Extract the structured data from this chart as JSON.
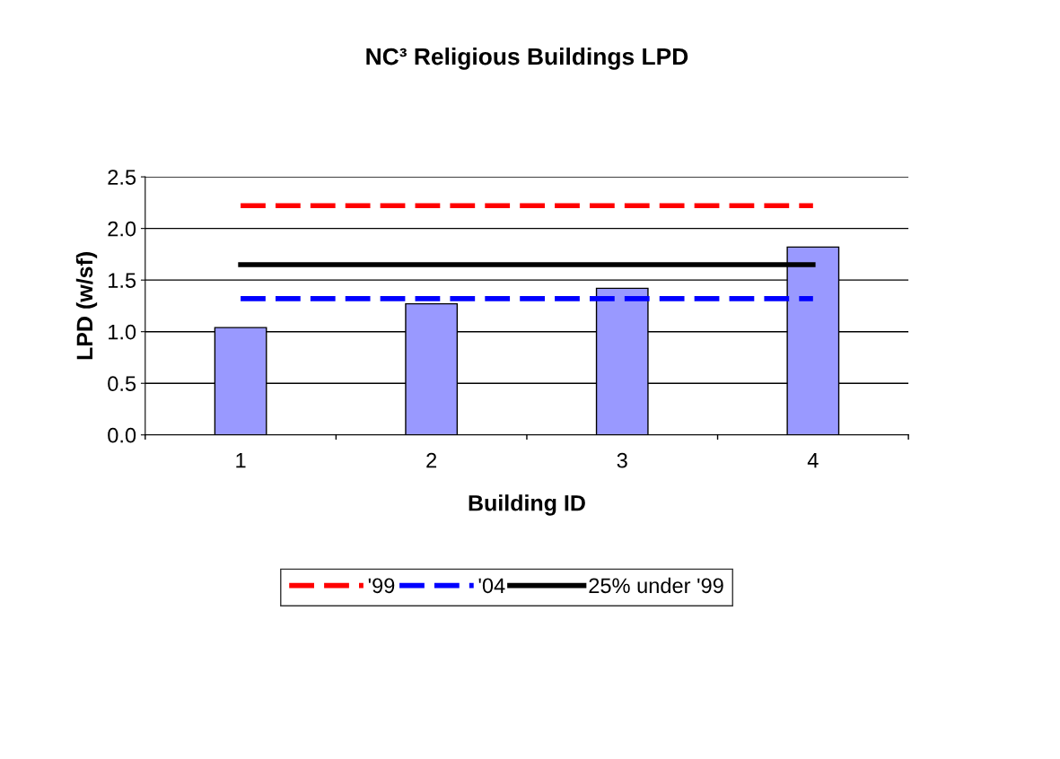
{
  "chart_data": {
    "type": "bar",
    "title": "NC³ Religious Buildings LPD",
    "xlabel": "Building ID",
    "ylabel": "LPD (w/sf)",
    "categories": [
      "1",
      "2",
      "3",
      "4"
    ],
    "series": [
      {
        "color": "#9999ff",
        "values": [
          1.04,
          1.27,
          1.42,
          1.82
        ]
      },
      {
        "type": "line",
        "name": "'99",
        "color": "#ff0000",
        "line_style": "dashed",
        "values": [
          2.22,
          2.22,
          2.22,
          2.22
        ]
      },
      {
        "type": "line",
        "name": "'04",
        "color": "#0000ff",
        "line_style": "dashed",
        "values": [
          1.32,
          1.32,
          1.32,
          1.32
        ]
      },
      {
        "type": "line",
        "name": "25% under '99",
        "color": "#000000",
        "line_style": "solid",
        "values": [
          1.65,
          1.65,
          1.65,
          1.65
        ]
      }
    ],
    "ylim": [
      0,
      2.5
    ],
    "yticks": [
      {
        "value": 0,
        "label": "0.0"
      },
      {
        "value": 0.5,
        "label": "0.5"
      },
      {
        "value": 1,
        "label": "1.0"
      },
      {
        "value": 1.5,
        "label": "1.5"
      },
      {
        "value": 2,
        "label": "2.0"
      },
      {
        "value": 2.5,
        "label": "2.5"
      }
    ],
    "grid": "y",
    "legend": "bottom"
  }
}
